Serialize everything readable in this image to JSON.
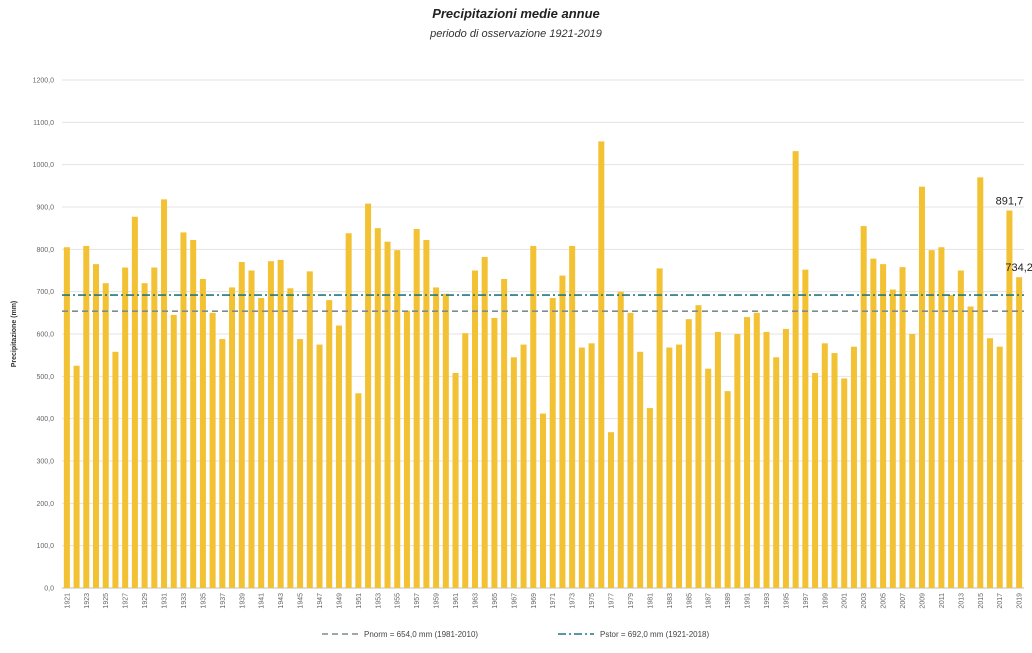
{
  "chart_data": {
    "type": "bar",
    "title": "Precipitazioni medie annue",
    "subtitle": "periodo di osservazione 1921-2019",
    "ylabel": "Precipitazione (mm)",
    "xlabel": "",
    "ylim": [
      0,
      1200
    ],
    "yticks": [
      "0,0",
      "100,0",
      "200,0",
      "300,0",
      "400,0",
      "500,0",
      "600,0",
      "700,0",
      "800,0",
      "900,0",
      "1000,0",
      "1100,0",
      "1200,0"
    ],
    "grid": true,
    "bar_color": "#f2c234",
    "categories": [
      1921,
      1922,
      1923,
      1924,
      1925,
      1926,
      1927,
      1928,
      1929,
      1930,
      1931,
      1932,
      1933,
      1934,
      1935,
      1936,
      1937,
      1938,
      1939,
      1940,
      1941,
      1942,
      1943,
      1944,
      1945,
      1946,
      1947,
      1948,
      1949,
      1950,
      1951,
      1952,
      1953,
      1954,
      1955,
      1956,
      1957,
      1958,
      1959,
      1960,
      1961,
      1962,
      1963,
      1964,
      1965,
      1966,
      1967,
      1968,
      1969,
      1970,
      1971,
      1972,
      1973,
      1974,
      1975,
      1976,
      1977,
      1978,
      1979,
      1980,
      1981,
      1982,
      1983,
      1984,
      1985,
      1986,
      1987,
      1988,
      1989,
      1990,
      1991,
      1992,
      1993,
      1994,
      1995,
      1996,
      1997,
      1998,
      1999,
      2000,
      2001,
      2002,
      2003,
      2004,
      2005,
      2006,
      2007,
      2008,
      2009,
      2010,
      2011,
      2012,
      2013,
      2014,
      2015,
      2016,
      2017,
      2018,
      2019
    ],
    "tick_labels": [
      "1921",
      "1923",
      "1925",
      "1927",
      "1929",
      "1931",
      "1933",
      "1935",
      "1937",
      "1939",
      "1941",
      "1943",
      "1945",
      "1947",
      "1949",
      "1951",
      "1953",
      "1955",
      "1957",
      "1959",
      "1961",
      "1963",
      "1965",
      "1967",
      "1969",
      "1971",
      "1973",
      "1975",
      "1977",
      "1979",
      "1981",
      "1983",
      "1985",
      "1987",
      "1989",
      "1991",
      "1993",
      "1995",
      "1997",
      "1999",
      "2001",
      "2003",
      "2005",
      "2007",
      "2009",
      "2011",
      "2013",
      "2015",
      "2017",
      "2019"
    ],
    "values": [
      805,
      525,
      808,
      765,
      720,
      558,
      757,
      877,
      720,
      757,
      918,
      645,
      840,
      822,
      730,
      650,
      588,
      710,
      770,
      750,
      685,
      772,
      775,
      708,
      588,
      748,
      575,
      680,
      620,
      838,
      460,
      908,
      850,
      818,
      798,
      655,
      848,
      822,
      710,
      695,
      508,
      602,
      750,
      782,
      638,
      730,
      545,
      575,
      808,
      412,
      685,
      738,
      808,
      568,
      578,
      1055,
      368,
      700,
      650,
      558,
      425,
      755,
      568,
      575,
      635,
      668,
      518,
      605,
      465,
      600,
      640,
      650,
      605,
      545,
      612,
      1032,
      752,
      508,
      578,
      555,
      495,
      570,
      855,
      778,
      765,
      705,
      758,
      600,
      948,
      798,
      805,
      692,
      750,
      665,
      970,
      590,
      570,
      891.7,
      734.2
    ],
    "data_labels": [
      {
        "year": 2018,
        "value": 891.7,
        "label": "891,7"
      },
      {
        "year": 2019,
        "value": 734.2,
        "label": "734,2"
      }
    ],
    "reference_lines": [
      {
        "value": 654,
        "style": "dashed",
        "color": "#7f8c8d",
        "label": "Pnorm = 654,0 mm (1981-2010)"
      },
      {
        "value": 692,
        "style": "dashdot",
        "color": "#1f7a80",
        "label": "Pstor = 692,0 mm (1921-2018)"
      }
    ],
    "legend_placement": "bottom"
  }
}
